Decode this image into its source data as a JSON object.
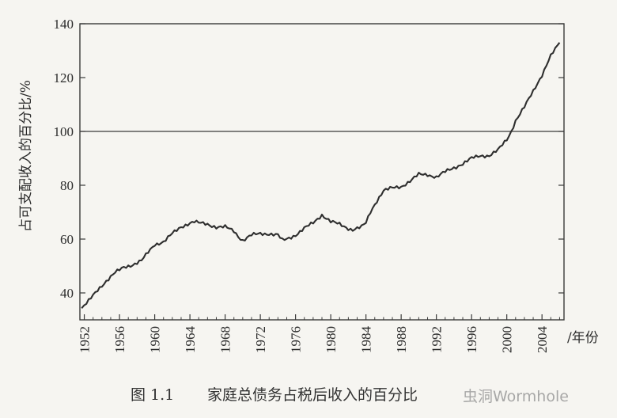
{
  "chart_data": {
    "type": "line",
    "title": "",
    "xlabel": "/年份",
    "ylabel": "占可支配收入的百分比/%",
    "xlim": [
      1951.5,
      2006.5
    ],
    "ylim": [
      30,
      140
    ],
    "x_ticks": [
      1952,
      1956,
      1960,
      1964,
      1968,
      1972,
      1976,
      1980,
      1984,
      1988,
      1992,
      1996,
      2000,
      2004
    ],
    "y_ticks": [
      40,
      60,
      80,
      100,
      120,
      140
    ],
    "grid": false,
    "legend": "none",
    "reference_line": {
      "y": 100
    },
    "series": [
      {
        "x": [
          1951.7,
          1952.5,
          1953.5,
          1954.5,
          1955.5,
          1956.5,
          1957.5,
          1958.5,
          1959,
          1959.5,
          1960,
          1960.5,
          1961,
          1962,
          1963,
          1964,
          1964.5,
          1965,
          1966,
          1967,
          1968,
          1969,
          1969.5,
          1970,
          1970.5,
          1971,
          1972,
          1973,
          1974,
          1974.5,
          1975,
          1976,
          1977,
          1978,
          1979,
          1980,
          1981,
          1982,
          1982.5,
          1983,
          1983.5,
          1984,
          1984.5,
          1985,
          1986,
          1987,
          1988,
          1989,
          1990,
          1991,
          1992,
          1993,
          1994,
          1995,
          1996,
          1997,
          1998,
          1999,
          2000,
          2000.5,
          2001,
          2002,
          2003,
          2004,
          2005,
          2006
        ],
        "values": [
          34,
          37,
          41,
          44.5,
          47.5,
          49.5,
          50.5,
          52,
          54,
          56,
          58,
          58.5,
          59,
          62,
          64.5,
          66,
          66.5,
          66,
          65.5,
          64.5,
          64.5,
          63,
          61,
          59.5,
          60.5,
          61.5,
          62,
          62,
          61.5,
          59.5,
          60,
          61.5,
          64,
          66,
          69,
          66.5,
          65.5,
          64,
          63.5,
          64,
          64.5,
          66,
          70,
          73,
          78,
          79,
          79.5,
          81.5,
          84,
          84,
          83,
          85,
          86.5,
          88,
          90,
          91,
          91,
          93,
          97,
          100,
          104,
          109,
          115,
          121,
          128,
          133
        ]
      }
    ]
  },
  "caption": {
    "figure_label": "图 1.1",
    "text": "家庭总债务占税后收入的百分比"
  },
  "watermark": "虫洞Wormhole"
}
